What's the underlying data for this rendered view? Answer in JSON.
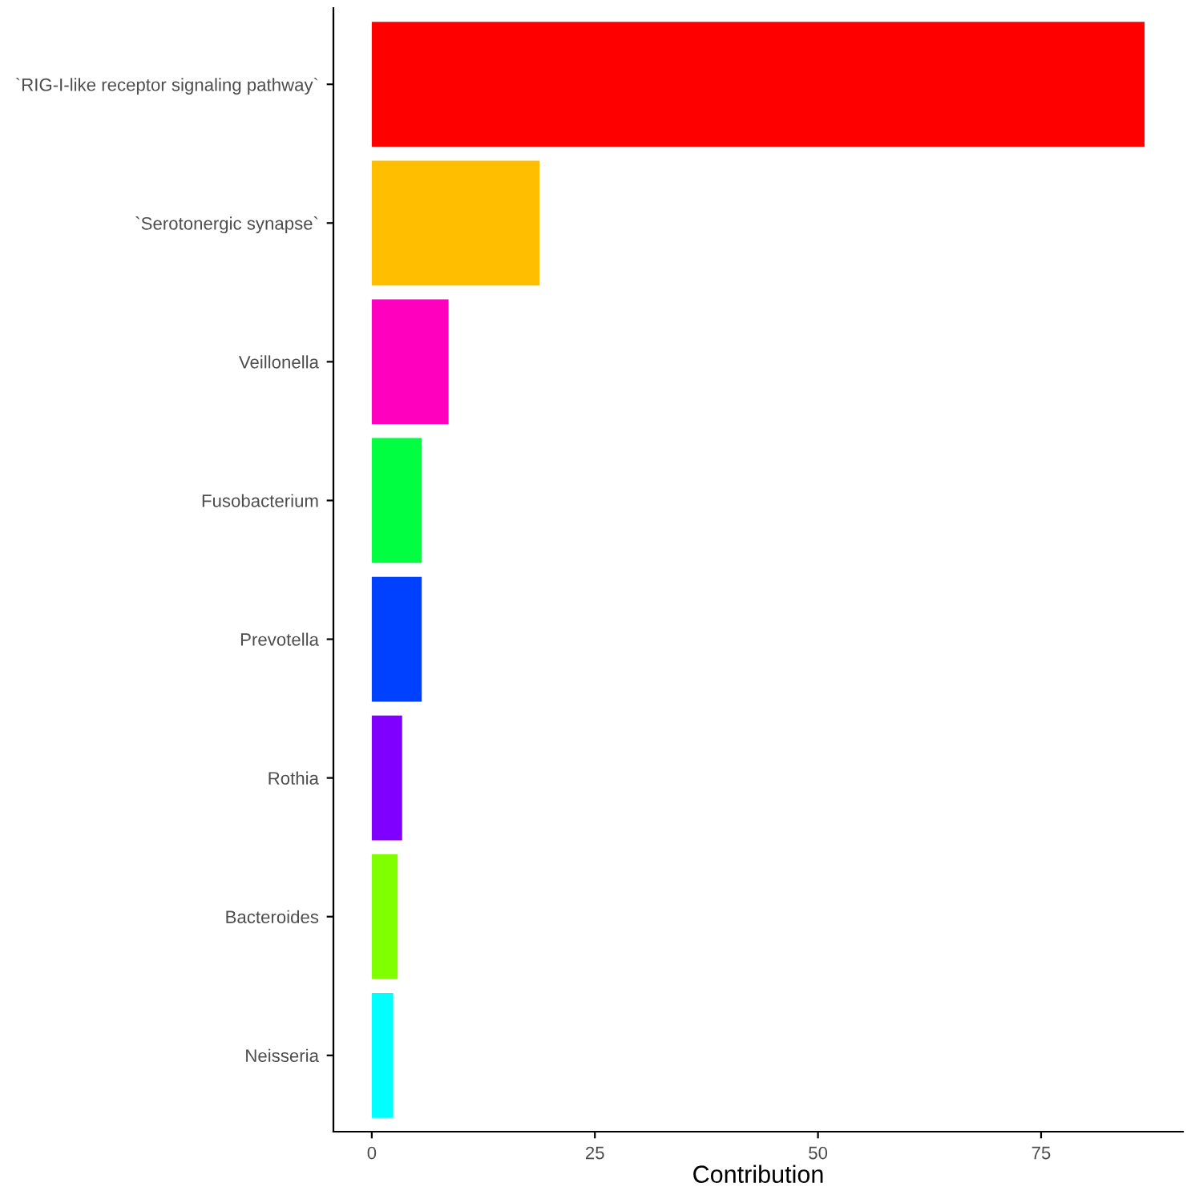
{
  "chart_data": {
    "type": "bar",
    "orientation": "horizontal",
    "xlabel": "Contribution",
    "categories": [
      "`RIG-I-like receptor signaling pathway`",
      "`Serotonergic synapse`",
      "Veillonella",
      "Fusobacterium",
      "Prevotella",
      "Rothia",
      "Bacteroides",
      "Neisseria"
    ],
    "values": [
      86.6,
      18.8,
      8.6,
      5.6,
      5.6,
      3.4,
      2.9,
      2.4
    ],
    "colors": [
      "#ff0000",
      "#ffbf00",
      "#ff00bf",
      "#00ff40",
      "#0040ff",
      "#8000ff",
      "#80ff00",
      "#00ffff"
    ],
    "xlim": [
      -4.3,
      90.9
    ],
    "xticks": [
      0,
      25,
      50,
      75
    ],
    "grid": false,
    "legend": false
  }
}
